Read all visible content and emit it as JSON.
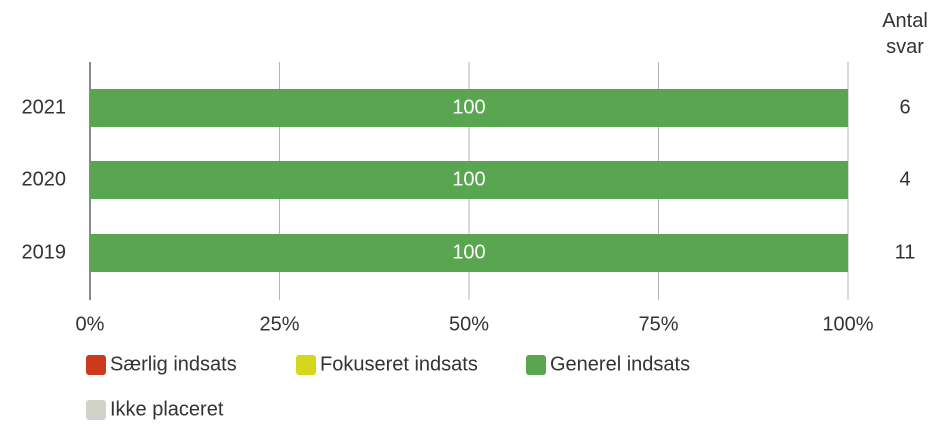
{
  "chart_data": {
    "type": "stacked_barh",
    "categories": [
      "2021",
      "2020",
      "2019"
    ],
    "series": [
      {
        "name": "Særlig indsats",
        "color": "#cc3a1e",
        "values": [
          0,
          0,
          0
        ]
      },
      {
        "name": "Fokuseret indsats",
        "color": "#d6d61c",
        "values": [
          0,
          0,
          0
        ]
      },
      {
        "name": "Generel indsats",
        "color": "#5aa650",
        "values": [
          100,
          100,
          100
        ]
      },
      {
        "name": "Ikke placeret",
        "color": "#d2d2ca",
        "values": [
          0,
          0,
          0
        ]
      }
    ],
    "xlim": [
      0,
      100
    ],
    "xticks": [
      {
        "value": 0,
        "label": "0%"
      },
      {
        "value": 25,
        "label": "25%"
      },
      {
        "value": 50,
        "label": "50%"
      },
      {
        "value": 75,
        "label": "75%"
      },
      {
        "value": 100,
        "label": "100%"
      }
    ],
    "grid": true,
    "counts_title": "Antal svar",
    "counts": [
      6,
      4,
      11
    ]
  }
}
